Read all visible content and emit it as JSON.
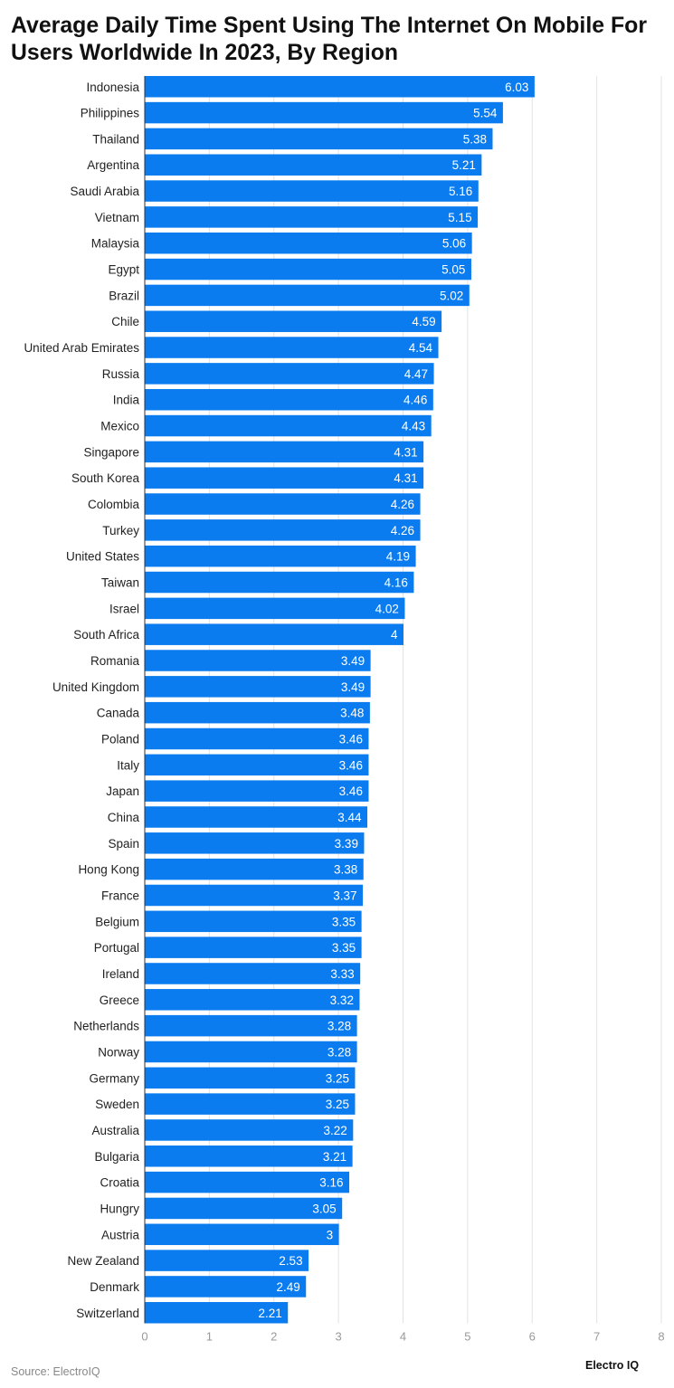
{
  "chart_data": {
    "type": "bar",
    "orientation": "horizontal",
    "title": "Average Daily Time Spent Using The Internet On Mobile For Users Worldwide In 2023, By Region",
    "title_lines": [
      "Average Daily Time Spent Using The Internet On Mobile For",
      "Users Worldwide In 2023, By Region"
    ],
    "categories": [
      "Indonesia",
      "Philippines",
      "Thailand",
      "Argentina",
      "Saudi Arabia",
      "Vietnam",
      "Malaysia",
      "Egypt",
      "Brazil",
      "Chile",
      "United Arab Emirates",
      "Russia",
      "India",
      "Mexico",
      "Singapore",
      "South Korea",
      "Colombia",
      "Turkey",
      "United States",
      "Taiwan",
      "Israel",
      "South Africa",
      "Romania",
      "United Kingdom",
      "Canada",
      "Poland",
      "Italy",
      "Japan",
      "China",
      "Spain",
      "Hong Kong",
      "France",
      "Belgium",
      "Portugal",
      "Ireland",
      "Greece",
      "Netherlands",
      "Norway",
      "Germany",
      "Sweden",
      "Australia",
      "Bulgaria",
      "Croatia",
      "Hungry",
      "Austria",
      "New Zealand",
      "Denmark",
      "Switzerland"
    ],
    "values": [
      6.03,
      5.54,
      5.38,
      5.21,
      5.16,
      5.15,
      5.06,
      5.05,
      5.02,
      4.59,
      4.54,
      4.47,
      4.46,
      4.43,
      4.31,
      4.31,
      4.26,
      4.26,
      4.19,
      4.16,
      4.02,
      4,
      3.49,
      3.49,
      3.48,
      3.46,
      3.46,
      3.46,
      3.44,
      3.39,
      3.38,
      3.37,
      3.35,
      3.35,
      3.33,
      3.32,
      3.28,
      3.28,
      3.25,
      3.25,
      3.22,
      3.21,
      3.16,
      3.05,
      3,
      2.53,
      2.49,
      2.21
    ],
    "xlim": [
      0,
      8
    ],
    "xticks": [
      "0",
      "1",
      "2",
      "3",
      "4",
      "5",
      "6",
      "7",
      "8"
    ],
    "xlabel": "",
    "ylabel": "",
    "grid": true,
    "data_labels": true,
    "bar_color": "#0a7cf0"
  },
  "footer": {
    "source": "Source: ElectroIQ",
    "brand": "Electro IQ"
  }
}
